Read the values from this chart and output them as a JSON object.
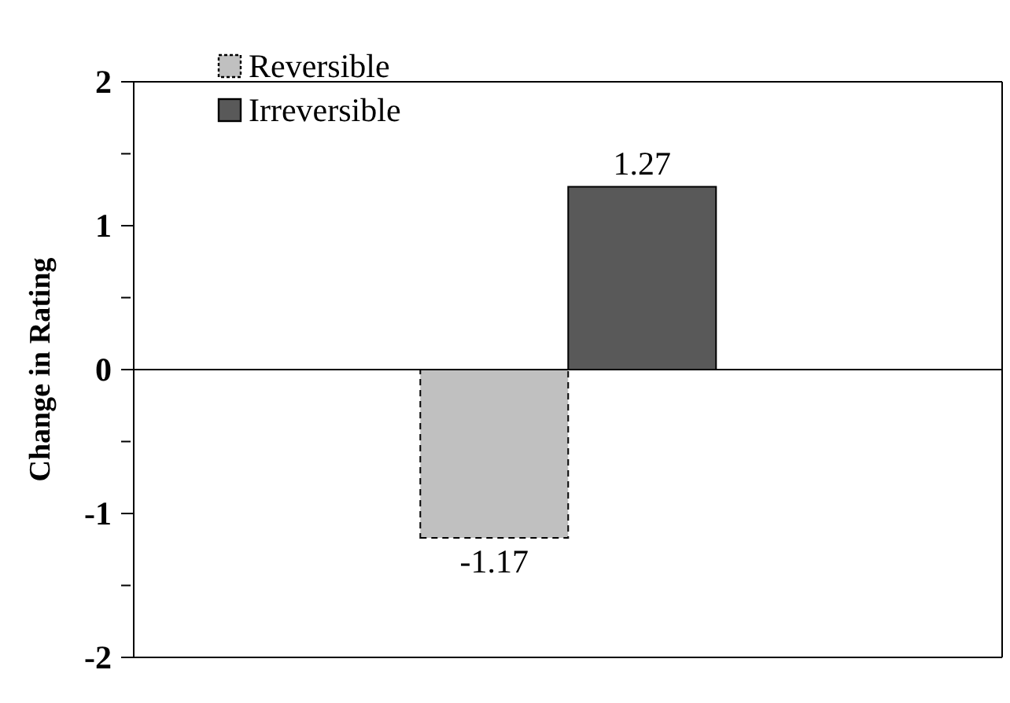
{
  "chart_data": {
    "type": "bar",
    "ylabel": "Change in Rating",
    "categories": [
      null
    ],
    "series": [
      {
        "name": "Reversible",
        "color": "#c0c0c0",
        "values": [
          -1.17
        ],
        "line_style": "dashed"
      },
      {
        "name": "Irreversible",
        "color": "#595959",
        "values": [
          1.27
        ],
        "line_style": "solid"
      }
    ],
    "ylim": [
      -2,
      2
    ],
    "yticks": [
      -2,
      {
        "value": -1.5,
        "label": null
      },
      -1,
      {
        "value": -0.5,
        "label": null
      },
      0,
      {
        "value": 0.5,
        "label": null
      },
      1,
      {
        "value": 1.5,
        "label": null
      },
      2
    ],
    "data_labels": true,
    "legend": "top left"
  }
}
